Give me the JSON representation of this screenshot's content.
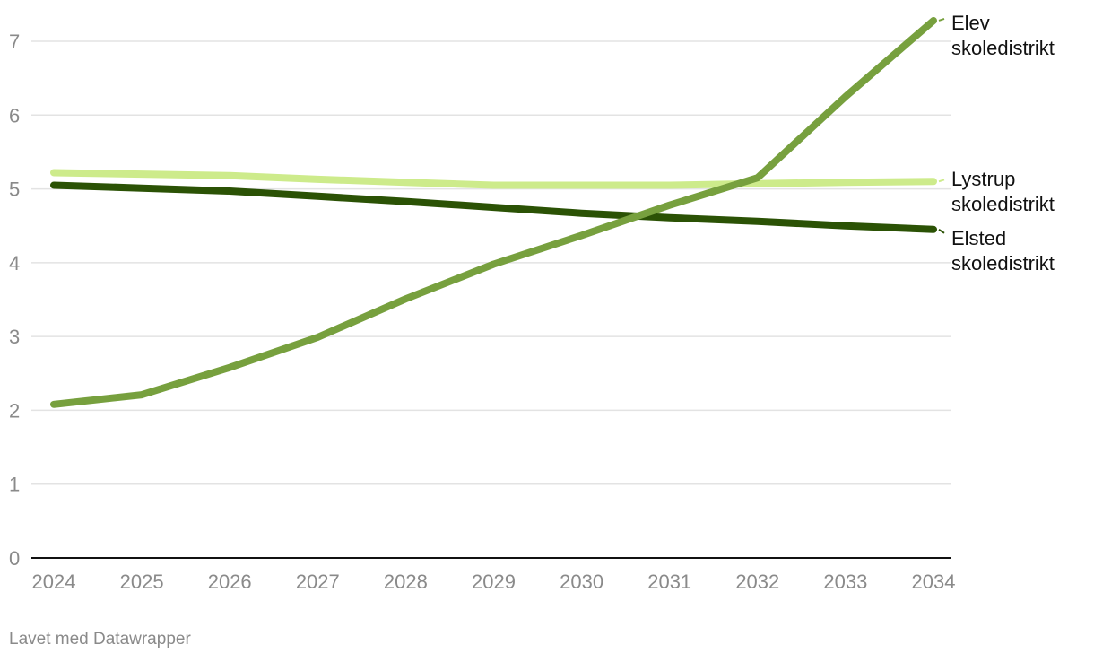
{
  "footer": "Lavet med Datawrapper",
  "chart_data": {
    "type": "line",
    "x": [
      "2024",
      "2025",
      "2026",
      "2027",
      "2028",
      "2029",
      "2030",
      "2031",
      "2032",
      "2033",
      "2034"
    ],
    "ylim": [
      0,
      7
    ],
    "yticks": [
      "0",
      "1",
      "2",
      "3",
      "4",
      "5",
      "6",
      "7"
    ],
    "grid": true,
    "legend": "direct labels at line ends (right)",
    "series": [
      {
        "name": "Lystrup skoledistrikt",
        "label_lines": [
          "Lystrup",
          "skoledistrikt"
        ],
        "color": "#cdeb8b",
        "values": [
          5.22,
          5.2,
          5.18,
          5.13,
          5.09,
          5.05,
          5.05,
          5.05,
          5.07,
          5.09,
          5.1
        ]
      },
      {
        "name": "Elsted skoledistrikt",
        "label_lines": [
          "Elsted",
          "skoledistrikt"
        ],
        "color": "#2b5205",
        "values": [
          5.05,
          5.01,
          4.97,
          4.9,
          4.83,
          4.75,
          4.67,
          4.61,
          4.56,
          4.5,
          4.45
        ]
      },
      {
        "name": "Elev skoledistrikt",
        "label_lines": [
          "Elev",
          "skoledistrikt"
        ],
        "color": "#77a03e",
        "values": [
          2.08,
          2.21,
          2.58,
          2.99,
          3.51,
          3.98,
          4.37,
          4.78,
          5.15,
          6.25,
          7.28
        ]
      }
    ]
  }
}
